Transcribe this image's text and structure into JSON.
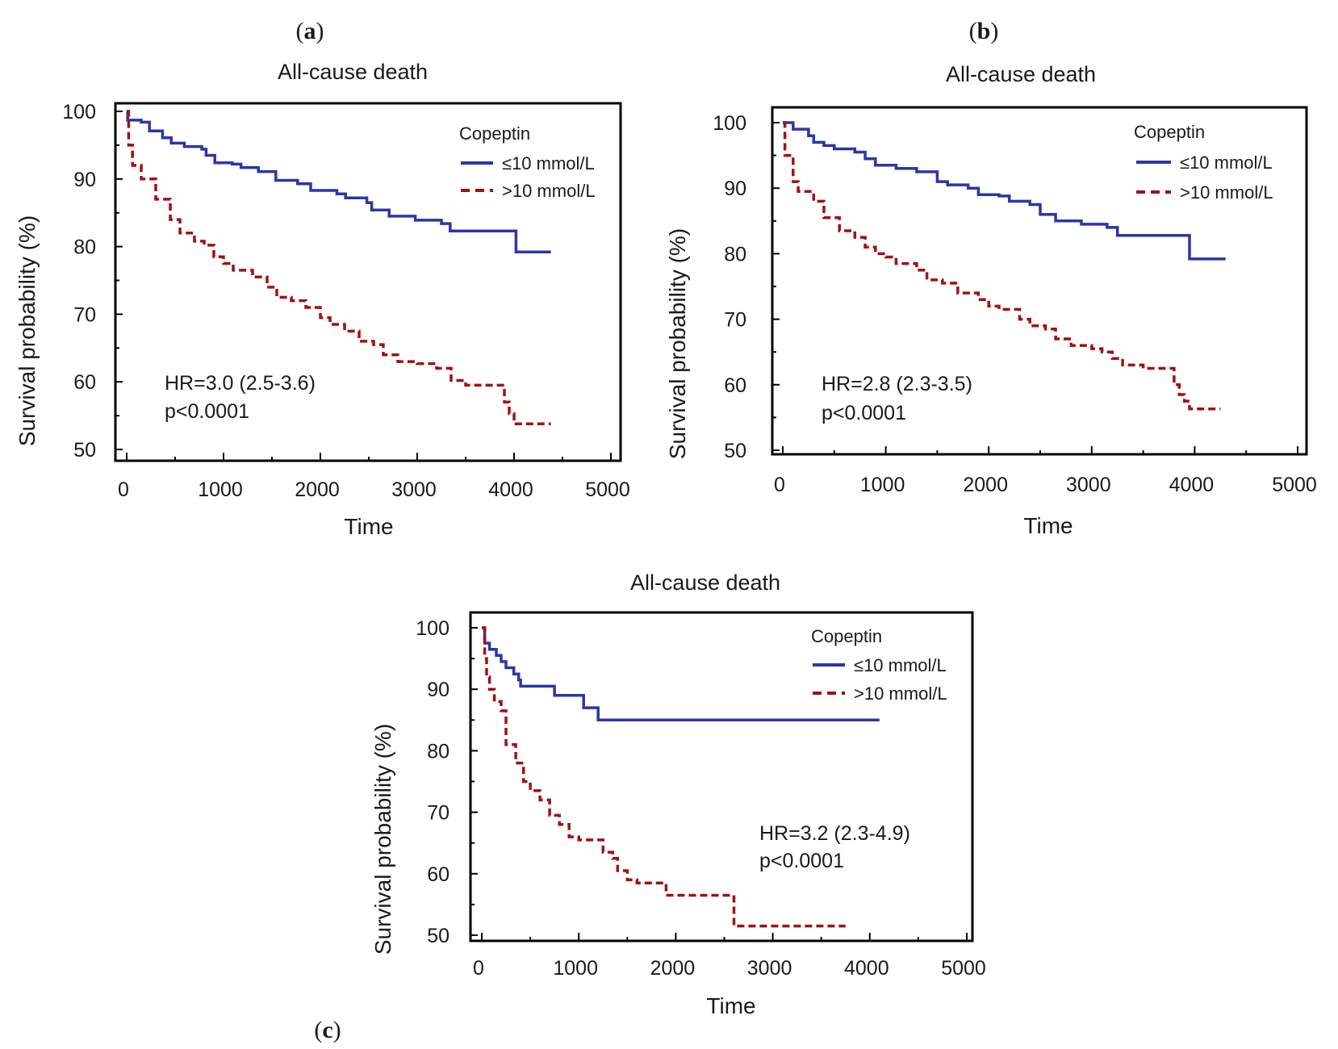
{
  "chart_data": [
    {
      "type": "line",
      "panel_label": "a",
      "title": "All-cause death",
      "xlabel": "Time",
      "ylabel": "Survival probability (%)",
      "xlim": [
        0,
        5000
      ],
      "ylim": [
        50,
        100
      ],
      "xticks": [
        "0",
        "1000",
        "2000",
        "3000",
        "4000",
        "5000"
      ],
      "yticks": [
        "50",
        "60",
        "70",
        "80",
        "90",
        "100"
      ],
      "legend_title": "Copeptin",
      "legend_position": "top-right",
      "annotation": [
        "HR=3.0 (2.5-3.6)",
        "p<0.0001"
      ],
      "series": [
        {
          "name": "≤10 mmol/L",
          "color": "#2B36A6",
          "style": "solid",
          "points": [
            [
              0,
              100
            ],
            [
              10,
              98.7
            ],
            [
              150,
              98.4
            ],
            [
              235,
              97.1
            ],
            [
              370,
              96.1
            ],
            [
              460,
              95.3
            ],
            [
              595,
              94.8
            ],
            [
              775,
              94.4
            ],
            [
              820,
              93.5
            ],
            [
              910,
              92.4
            ],
            [
              1090,
              92.2
            ],
            [
              1180,
              91.7
            ],
            [
              1360,
              91.1
            ],
            [
              1540,
              89.8
            ],
            [
              1765,
              89.3
            ],
            [
              1900,
              88.3
            ],
            [
              2170,
              87.8
            ],
            [
              2260,
              87.2
            ],
            [
              2480,
              86.5
            ],
            [
              2530,
              85.4
            ],
            [
              2710,
              84.5
            ],
            [
              2980,
              83.9
            ],
            [
              3250,
              83.4
            ],
            [
              3340,
              82.3
            ],
            [
              4020,
              79.2
            ],
            [
              4380,
              79.2
            ]
          ]
        },
        {
          "name": ">10 mmol/L",
          "color": "#A01212",
          "style": "dashed",
          "points": [
            [
              0,
              100
            ],
            [
              20,
              95
            ],
            [
              60,
              92
            ],
            [
              150,
              90
            ],
            [
              300,
              87
            ],
            [
              450,
              84
            ],
            [
              550,
              82
            ],
            [
              700,
              80.8
            ],
            [
              800,
              80.2
            ],
            [
              900,
              78.5
            ],
            [
              1000,
              77.5
            ],
            [
              1100,
              76.5
            ],
            [
              1300,
              75.5
            ],
            [
              1450,
              74
            ],
            [
              1550,
              72.5
            ],
            [
              1700,
              72
            ],
            [
              1850,
              71
            ],
            [
              2000,
              69.5
            ],
            [
              2100,
              68.5
            ],
            [
              2250,
              67.5
            ],
            [
              2400,
              66
            ],
            [
              2550,
              65.5
            ],
            [
              2650,
              64
            ],
            [
              2800,
              63
            ],
            [
              3000,
              62.7
            ],
            [
              3200,
              62
            ],
            [
              3350,
              60.2
            ],
            [
              3500,
              59.5
            ],
            [
              3850,
              59.5
            ],
            [
              3900,
              57
            ],
            [
              3950,
              55.3
            ],
            [
              4000,
              53.8
            ],
            [
              4380,
              53.8
            ]
          ]
        }
      ]
    },
    {
      "type": "line",
      "panel_label": "b",
      "title": "All-cause death",
      "xlabel": "Time",
      "ylabel": "Survival probability (%)",
      "xlim": [
        0,
        5000
      ],
      "ylim": [
        50,
        100
      ],
      "xticks": [
        "0",
        "1000",
        "2000",
        "3000",
        "4000",
        "5000"
      ],
      "yticks": [
        "50",
        "60",
        "70",
        "80",
        "90",
        "100"
      ],
      "legend_title": "Copeptin",
      "legend_position": "top-right",
      "annotation": [
        "HR=2.8 (2.3-3.5)",
        "p<0.0001"
      ],
      "series": [
        {
          "name": "≤10 mmol/L",
          "color": "#2B36A6",
          "style": "solid",
          "points": [
            [
              0,
              100
            ],
            [
              100,
              99
            ],
            [
              250,
              98
            ],
            [
              300,
              97
            ],
            [
              400,
              96.5
            ],
            [
              500,
              96
            ],
            [
              700,
              95.5
            ],
            [
              800,
              94.5
            ],
            [
              900,
              93.5
            ],
            [
              1100,
              93
            ],
            [
              1300,
              92.5
            ],
            [
              1500,
              91
            ],
            [
              1600,
              90.5
            ],
            [
              1800,
              90
            ],
            [
              1900,
              89
            ],
            [
              2100,
              88.8
            ],
            [
              2200,
              88
            ],
            [
              2400,
              87.5
            ],
            [
              2500,
              86
            ],
            [
              2650,
              85
            ],
            [
              2900,
              84.5
            ],
            [
              3150,
              84
            ],
            [
              3250,
              82.8
            ],
            [
              3950,
              79.2
            ],
            [
              4300,
              79.2
            ]
          ]
        },
        {
          "name": ">10 mmol/L",
          "color": "#A01212",
          "style": "dashed",
          "points": [
            [
              0,
              100
            ],
            [
              20,
              95
            ],
            [
              100,
              91
            ],
            [
              150,
              89.5
            ],
            [
              300,
              88
            ],
            [
              400,
              85.5
            ],
            [
              550,
              83.5
            ],
            [
              700,
              82.5
            ],
            [
              800,
              81
            ],
            [
              900,
              80
            ],
            [
              1000,
              79.5
            ],
            [
              1100,
              78.5
            ],
            [
              1300,
              77.5
            ],
            [
              1400,
              76
            ],
            [
              1550,
              75.5
            ],
            [
              1700,
              74
            ],
            [
              1900,
              73
            ],
            [
              2000,
              72
            ],
            [
              2100,
              71.5
            ],
            [
              2300,
              70
            ],
            [
              2400,
              69
            ],
            [
              2550,
              68.5
            ],
            [
              2650,
              67
            ],
            [
              2800,
              66
            ],
            [
              3000,
              65.5
            ],
            [
              3100,
              65
            ],
            [
              3200,
              64
            ],
            [
              3300,
              63
            ],
            [
              3500,
              62.5
            ],
            [
              3780,
              62.5
            ],
            [
              3800,
              60
            ],
            [
              3850,
              58.5
            ],
            [
              3900,
              57.5
            ],
            [
              3950,
              56.3
            ],
            [
              4250,
              56.3
            ]
          ]
        }
      ]
    },
    {
      "type": "line",
      "panel_label": "c",
      "title": "All-cause death",
      "xlabel": "Time",
      "ylabel": "Survival probability (%)",
      "xlim": [
        0,
        5000
      ],
      "ylim": [
        50,
        100
      ],
      "xticks": [
        "0",
        "1000",
        "2000",
        "3000",
        "4000",
        "5000"
      ],
      "yticks": [
        "50",
        "60",
        "70",
        "80",
        "90",
        "100"
      ],
      "legend_title": "Copeptin",
      "legend_position": "top-right",
      "annotation": [
        "HR=3.2 (2.3-4.9)",
        "p<0.0001"
      ],
      "series": [
        {
          "name": "≤10 mmol/L",
          "color": "#2B36A6",
          "style": "solid",
          "points": [
            [
              0,
              100
            ],
            [
              30,
              97.5
            ],
            [
              80,
              96.5
            ],
            [
              150,
              95.5
            ],
            [
              200,
              94.5
            ],
            [
              250,
              93.5
            ],
            [
              330,
              92.5
            ],
            [
              380,
              91.5
            ],
            [
              400,
              90.5
            ],
            [
              750,
              89
            ],
            [
              1050,
              87
            ],
            [
              1200,
              85
            ],
            [
              4100,
              85
            ]
          ]
        },
        {
          "name": ">10 mmol/L",
          "color": "#A01212",
          "style": "dashed",
          "points": [
            [
              0,
              100
            ],
            [
              30,
              95
            ],
            [
              50,
              92
            ],
            [
              80,
              90
            ],
            [
              130,
              88
            ],
            [
              200,
              86.5
            ],
            [
              250,
              81
            ],
            [
              350,
              78
            ],
            [
              430,
              75
            ],
            [
              500,
              73.5
            ],
            [
              600,
              72
            ],
            [
              700,
              69.5
            ],
            [
              800,
              68
            ],
            [
              900,
              66
            ],
            [
              1000,
              65.5
            ],
            [
              1250,
              63.5
            ],
            [
              1350,
              62.5
            ],
            [
              1400,
              60.5
            ],
            [
              1500,
              59
            ],
            [
              1600,
              58.5
            ],
            [
              1900,
              56.5
            ],
            [
              2600,
              51.5
            ],
            [
              3750,
              51.5
            ]
          ]
        }
      ]
    }
  ]
}
